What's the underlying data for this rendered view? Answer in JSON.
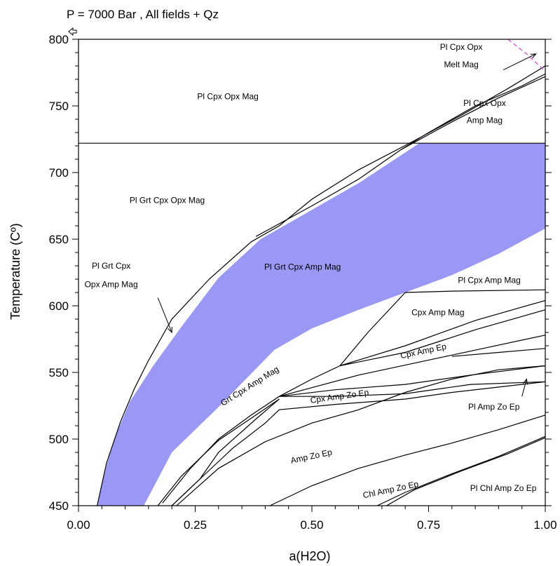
{
  "chart_data": {
    "type": "phase-diagram",
    "title": "P = 7000 Bar , All fields + Qz",
    "xlabel": "a(H2O)",
    "ylabel": "Temperature (Cº)",
    "xlim": [
      0,
      1
    ],
    "ylim": [
      450,
      800
    ],
    "x_ticks": [
      0,
      0.25,
      0.5,
      0.75,
      1.0
    ],
    "x_tick_labels": [
      "0.00",
      "0.25",
      "0.50",
      "0.75",
      "1.00"
    ],
    "y_ticks": [
      450,
      500,
      550,
      600,
      650,
      700,
      750,
      800
    ],
    "y_tick_labels": [
      "450",
      "500",
      "550",
      "600",
      "650",
      "700",
      "750",
      "800"
    ],
    "grid": false,
    "colors": {
      "shaded_field": "#9999f5",
      "melt_boundary": "#e34cdc",
      "lines": "#000000"
    },
    "shaded_field": {
      "label": "Pl Grt Cpx Amp Mag",
      "upper_boundary": [
        [
          0.04,
          450
        ],
        [
          0.06,
          480
        ],
        [
          0.08,
          503
        ],
        [
          0.11,
          528
        ],
        [
          0.16,
          555
        ],
        [
          0.22,
          584
        ],
        [
          0.3,
          621
        ],
        [
          0.39,
          650
        ],
        [
          0.5,
          672
        ],
        [
          0.6,
          692
        ],
        [
          0.73,
          722
        ],
        [
          1.0,
          722
        ]
      ],
      "lower_boundary": [
        [
          0.14,
          450
        ],
        [
          0.2,
          490
        ],
        [
          0.3,
          524
        ],
        [
          0.42,
          567
        ],
        [
          0.5,
          583
        ],
        [
          0.6,
          597
        ],
        [
          0.7,
          610
        ],
        [
          0.8,
          623
        ],
        [
          0.9,
          639
        ],
        [
          1.0,
          658
        ]
      ]
    },
    "curves": [
      {
        "points": [
          [
            0.0,
            722
          ],
          [
            1.0,
            722
          ]
        ]
      },
      {
        "points": [
          [
            0.04,
            450
          ],
          [
            0.06,
            482
          ],
          [
            0.09,
            513
          ],
          [
            0.12,
            538
          ],
          [
            0.15,
            559
          ],
          [
            0.2,
            590
          ],
          [
            0.28,
            620
          ],
          [
            0.37,
            648
          ],
          [
            0.43,
            660
          ]
        ]
      },
      {
        "points": [
          [
            0.43,
            660
          ],
          [
            0.5,
            680
          ],
          [
            0.6,
            702
          ],
          [
            0.72,
            724
          ],
          [
            0.82,
            743
          ],
          [
            0.92,
            763
          ],
          [
            1.0,
            780
          ]
        ]
      },
      {
        "points": [
          [
            0.38,
            652
          ],
          [
            0.5,
            675
          ],
          [
            0.6,
            695
          ],
          [
            0.69,
            717
          ],
          [
            0.8,
            738
          ],
          [
            0.9,
            756
          ],
          [
            1.0,
            772
          ]
        ]
      },
      {
        "points": [
          [
            0.69,
            717
          ],
          [
            0.75,
            730
          ],
          [
            0.85,
            750
          ],
          [
            0.95,
            765
          ],
          [
            1.0,
            774
          ]
        ]
      },
      {
        "points": [
          [
            0.7,
            610
          ],
          [
            0.8,
            611
          ],
          [
            1.0,
            612
          ]
        ]
      },
      {
        "points": [
          [
            0.7,
            610
          ],
          [
            0.62,
            580
          ],
          [
            0.56,
            555
          ],
          [
            0.5,
            545
          ],
          [
            0.43,
            532
          ],
          [
            0.37,
            518
          ],
          [
            0.3,
            500
          ],
          [
            0.24,
            478
          ],
          [
            0.18,
            452
          ]
        ]
      },
      {
        "points": [
          [
            0.56,
            555
          ],
          [
            0.7,
            570
          ],
          [
            0.85,
            589
          ],
          [
            1.0,
            604
          ]
        ]
      },
      {
        "points": [
          [
            0.56,
            555
          ],
          [
            0.7,
            565
          ],
          [
            0.85,
            582
          ],
          [
            1.0,
            597
          ]
        ]
      },
      {
        "points": [
          [
            0.43,
            532
          ],
          [
            0.6,
            548
          ],
          [
            0.8,
            563
          ],
          [
            1.0,
            578
          ]
        ]
      },
      {
        "points": [
          [
            0.8,
            562
          ],
          [
            0.9,
            565
          ],
          [
            1.0,
            568
          ]
        ]
      },
      {
        "points": [
          [
            0.43,
            532
          ],
          [
            0.55,
            537
          ],
          [
            0.7,
            541
          ],
          [
            0.84,
            548
          ],
          [
            1.0,
            555
          ]
        ]
      },
      {
        "points": [
          [
            0.43,
            532
          ],
          [
            0.55,
            532
          ],
          [
            0.7,
            534
          ],
          [
            0.84,
            541
          ],
          [
            1.0,
            543
          ]
        ]
      },
      {
        "points": [
          [
            0.2,
            450
          ],
          [
            0.26,
            470
          ],
          [
            0.33,
            493
          ],
          [
            0.4,
            512
          ],
          [
            0.43,
            522
          ],
          [
            0.55,
            526
          ],
          [
            0.7,
            530
          ],
          [
            0.8,
            535
          ],
          [
            1.0,
            543
          ]
        ]
      },
      {
        "points": [
          [
            0.17,
            450
          ],
          [
            0.22,
            472
          ],
          [
            0.3,
            499
          ],
          [
            0.38,
            518
          ],
          [
            0.43,
            530
          ]
        ]
      },
      {
        "points": [
          [
            0.2,
            450
          ],
          [
            0.26,
            470
          ],
          [
            0.3,
            490
          ],
          [
            0.38,
            515
          ],
          [
            0.43,
            530
          ]
        ]
      },
      {
        "points": [
          [
            0.21,
            450
          ],
          [
            0.3,
            478
          ],
          [
            0.4,
            498
          ],
          [
            0.5,
            512
          ],
          [
            0.6,
            522
          ],
          [
            0.7,
            535
          ],
          [
            0.8,
            545
          ],
          [
            0.9,
            552
          ],
          [
            1.0,
            555
          ]
        ]
      },
      {
        "points": [
          [
            0.41,
            450
          ],
          [
            0.5,
            465
          ],
          [
            0.6,
            478
          ],
          [
            0.7,
            488
          ],
          [
            0.8,
            497
          ],
          [
            0.9,
            507
          ],
          [
            1.0,
            518
          ]
        ]
      },
      {
        "points": [
          [
            0.64,
            450
          ],
          [
            0.7,
            460
          ],
          [
            0.8,
            474
          ],
          [
            0.9,
            487
          ],
          [
            1.0,
            502
          ]
        ]
      },
      {
        "points": [
          [
            0.66,
            450
          ],
          [
            0.72,
            462
          ],
          [
            0.82,
            476
          ],
          [
            0.92,
            489
          ],
          [
            1.0,
            501
          ]
        ]
      }
    ],
    "dashed_curve": {
      "points": [
        [
          0.92,
          800
        ],
        [
          0.96,
          789
        ],
        [
          1.0,
          776
        ]
      ]
    },
    "field_labels": [
      {
        "text": "Pl Cpx Opx Mag",
        "x": 0.32,
        "y": 755
      },
      {
        "text": "Pl Grt Cpx Opx Mag",
        "x": 0.19,
        "y": 677
      },
      {
        "text": "Pl Grt Cpx",
        "x": 0.07,
        "y": 628
      },
      {
        "text": "Opx Amp Mag",
        "x": 0.07,
        "y": 614
      },
      {
        "text": "Pl Grt Cpx Amp Mag",
        "x": 0.48,
        "y": 627
      },
      {
        "text": "Pl Cpx Opx",
        "x": 0.82,
        "y": 792
      },
      {
        "text": "Melt Mag",
        "x": 0.82,
        "y": 779
      },
      {
        "text": "Pl Cpx Opx",
        "x": 0.87,
        "y": 750
      },
      {
        "text": "Amp Mag",
        "x": 0.87,
        "y": 737
      },
      {
        "text": "Pl Cpx Amp Mag",
        "x": 0.88,
        "y": 617
      },
      {
        "text": "Cpx Amp Mag",
        "x": 0.77,
        "y": 593
      },
      {
        "text": "Cpx Amp Ep",
        "x": 0.74,
        "y": 564,
        "rot": -12
      },
      {
        "text": "Grt Cpx Amp Mag",
        "x": 0.37,
        "y": 538,
        "rot": -32
      },
      {
        "text": "Cpx Amp Zo Ep",
        "x": 0.56,
        "y": 530,
        "rot": -8
      },
      {
        "text": "Pl Amp Zo Ep",
        "x": 0.89,
        "y": 522
      },
      {
        "text": "Amp Zo Ep",
        "x": 0.5,
        "y": 485,
        "rot": -12
      },
      {
        "text": "Chl Amp Zo Ep",
        "x": 0.67,
        "y": 460,
        "rot": -12
      },
      {
        "text": "Pl Chl Amp Zo Ep",
        "x": 0.91,
        "y": 461
      }
    ],
    "arrows": [
      {
        "from": [
          0.17,
          606
        ],
        "to": [
          0.2,
          580
        ]
      },
      {
        "from": [
          0.91,
          777
        ],
        "to": [
          0.98,
          789
        ]
      },
      {
        "from": [
          0.95,
          532
        ],
        "to": [
          0.96,
          545
        ]
      }
    ]
  }
}
